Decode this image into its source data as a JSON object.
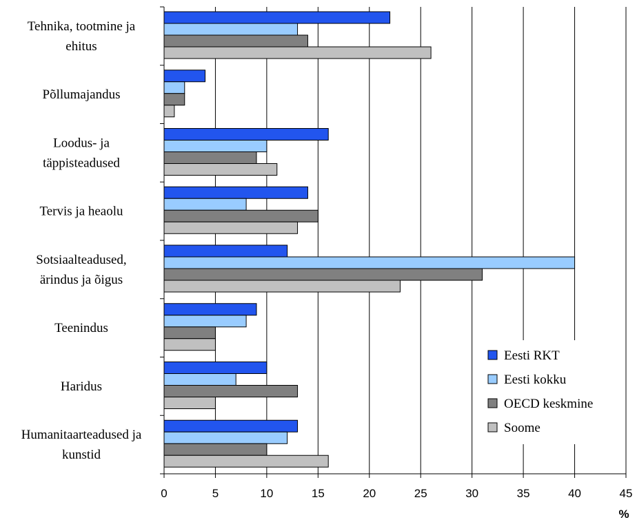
{
  "chart_data": {
    "type": "bar",
    "orientation": "horizontal",
    "categories": [
      [
        "Tehnika, tootmine ja",
        "ehitus"
      ],
      [
        "Põllumajandus"
      ],
      [
        "Loodus- ja",
        "täppisteadused"
      ],
      [
        "Tervis ja heaolu"
      ],
      [
        "Sotsiaalteadused,",
        "ärindus ja õigus"
      ],
      [
        "Teenindus"
      ],
      [
        "Haridus"
      ],
      [
        "Humanitaarteadused ja",
        "kunstid"
      ]
    ],
    "series": [
      {
        "name": "Eesti RKT",
        "color": "#2255ee",
        "values": [
          22,
          4,
          16,
          14,
          12,
          9,
          10,
          13
        ]
      },
      {
        "name": "Eesti kokku",
        "color": "#99ccff",
        "values": [
          13,
          2,
          10,
          8,
          40,
          8,
          7,
          12
        ]
      },
      {
        "name": "OECD keskmine",
        "color": "#808080",
        "values": [
          14,
          2,
          9,
          15,
          31,
          5,
          13,
          10
        ]
      },
      {
        "name": "Soome",
        "color": "#c0c0c0",
        "values": [
          26,
          1,
          11,
          13,
          23,
          5,
          5,
          16
        ]
      }
    ],
    "xlim": [
      0,
      45
    ],
    "xticks": [
      "0",
      "5",
      "10",
      "15",
      "20",
      "25",
      "30",
      "35",
      "40",
      "45"
    ],
    "xlabel": "%",
    "title": "",
    "grid": "vertical",
    "legend_position": "bottom-right"
  }
}
